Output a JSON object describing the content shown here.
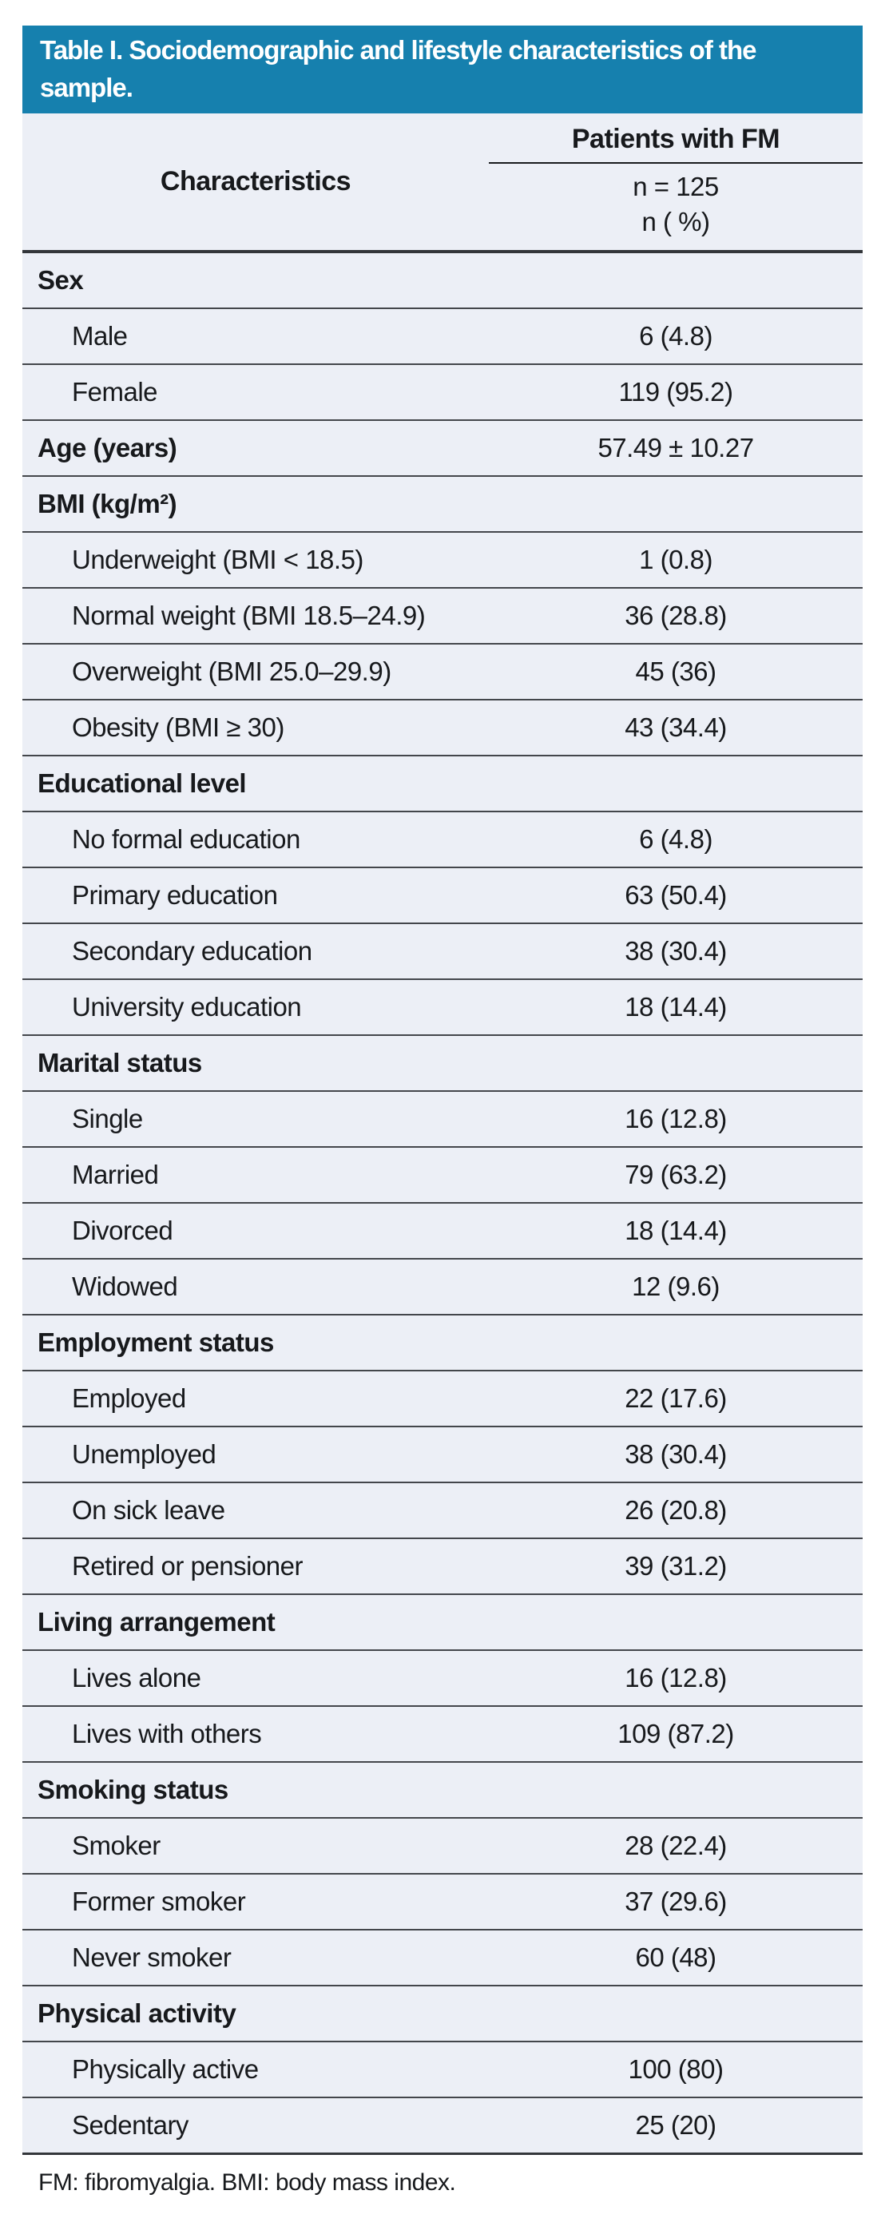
{
  "title": "Table I. Sociodemographic and lifestyle characteristics of the sample.",
  "header": {
    "characteristics_label": "Characteristics",
    "group_label": "Patients with FM",
    "n_line1": "n = 125",
    "n_line2": "n ( %)"
  },
  "rows": [
    {
      "kind": "section",
      "label": "Sex",
      "value": ""
    },
    {
      "kind": "item",
      "label": "Male",
      "value": "6 (4.8)"
    },
    {
      "kind": "item",
      "label": "Female",
      "value": "119 (95.2)"
    },
    {
      "kind": "section",
      "label": "Age (years)",
      "value": "57.49 ± 10.27"
    },
    {
      "kind": "section",
      "label": "BMI (kg/m²)",
      "value": ""
    },
    {
      "kind": "item",
      "label": "Underweight (BMI < 18.5)",
      "value": "1 (0.8)"
    },
    {
      "kind": "item",
      "label": "Normal weight (BMI 18.5–24.9)",
      "value": "36 (28.8)"
    },
    {
      "kind": "item",
      "label": "Overweight (BMI 25.0–29.9)",
      "value": "45 (36)"
    },
    {
      "kind": "item",
      "label": "Obesity (BMI ≥ 30)",
      "value": "43 (34.4)"
    },
    {
      "kind": "section",
      "label": "Educational level",
      "value": ""
    },
    {
      "kind": "item",
      "label": "No formal education",
      "value": "6 (4.8)"
    },
    {
      "kind": "item",
      "label": "Primary education",
      "value": "63 (50.4)"
    },
    {
      "kind": "item",
      "label": "Secondary education",
      "value": "38 (30.4)"
    },
    {
      "kind": "item",
      "label": "University education",
      "value": "18 (14.4)"
    },
    {
      "kind": "section",
      "label": "Marital status",
      "value": ""
    },
    {
      "kind": "item",
      "label": "Single",
      "value": "16 (12.8)"
    },
    {
      "kind": "item",
      "label": "Married",
      "value": "79 (63.2)"
    },
    {
      "kind": "item",
      "label": "Divorced",
      "value": "18 (14.4)"
    },
    {
      "kind": "item",
      "label": "Widowed",
      "value": "12 (9.6)"
    },
    {
      "kind": "section",
      "label": "Employment status",
      "value": ""
    },
    {
      "kind": "item",
      "label": "Employed",
      "value": "22 (17.6)"
    },
    {
      "kind": "item",
      "label": "Unemployed",
      "value": "38 (30.4)"
    },
    {
      "kind": "item",
      "label": "On sick leave",
      "value": "26 (20.8)"
    },
    {
      "kind": "item",
      "label": "Retired or pensioner",
      "value": "39 (31.2)"
    },
    {
      "kind": "section",
      "label": "Living arrangement",
      "value": ""
    },
    {
      "kind": "item",
      "label": "Lives alone",
      "value": "16 (12.8)"
    },
    {
      "kind": "item",
      "label": "Lives with others",
      "value": "109 (87.2)"
    },
    {
      "kind": "section",
      "label": "Smoking status",
      "value": ""
    },
    {
      "kind": "item",
      "label": "Smoker",
      "value": "28 (22.4)"
    },
    {
      "kind": "item",
      "label": "Former smoker",
      "value": "37 (29.6)"
    },
    {
      "kind": "item",
      "label": "Never smoker",
      "value": "60 (48)"
    },
    {
      "kind": "section",
      "label": "Physical activity",
      "value": ""
    },
    {
      "kind": "item",
      "label": "Physically active",
      "value": "100 (80)"
    },
    {
      "kind": "item",
      "label": "Sedentary",
      "value": "25 (20)"
    }
  ],
  "footnote": "FM: fibromyalgia. BMI: body mass index.",
  "colors": {
    "title_bar_background": "#1680AE",
    "title_text": "#ffffff",
    "table_background": "#ECEFF6",
    "rule_color": "#43464b",
    "text_color": "#17191c"
  }
}
